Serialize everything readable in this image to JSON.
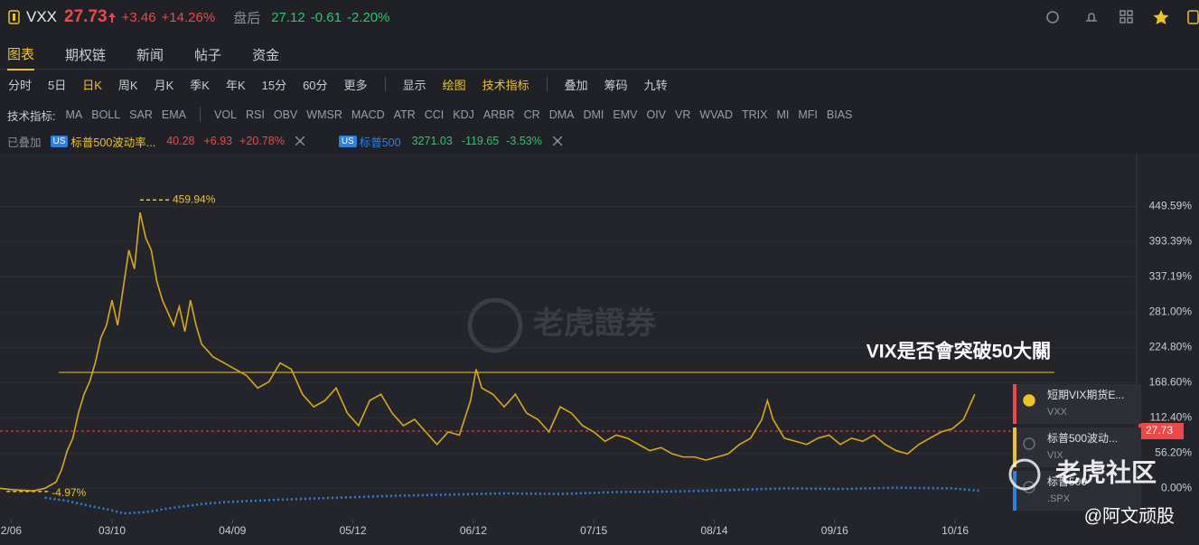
{
  "header": {
    "symbol": "VXX",
    "price": "27.73",
    "change": "+3.46",
    "change_pct": "+14.26%",
    "after_hours_label": "盘后",
    "after_price": "27.12",
    "after_change": "-0.61",
    "after_change_pct": "-2.20%"
  },
  "tabs": [
    "图表",
    "期权链",
    "新闻",
    "帖子",
    "资金"
  ],
  "periods": [
    "分时",
    "5日",
    "日K",
    "周K",
    "月K",
    "季K",
    "年K",
    "15分",
    "60分",
    "更多"
  ],
  "tools": [
    "显示",
    "绘图",
    "技术指标"
  ],
  "extra_tools": [
    "叠加",
    "筹码",
    "九转"
  ],
  "indicators_label": "技术指标:",
  "indicators": [
    "MA",
    "BOLL",
    "SAR",
    "EMA",
    "VOL",
    "RSI",
    "OBV",
    "WMSR",
    "MACD",
    "ATR",
    "CCI",
    "KDJ",
    "ARBR",
    "CR",
    "DMA",
    "DMI",
    "EMV",
    "OIV",
    "VR",
    "WVAD",
    "TRIX",
    "MI",
    "MFI",
    "BIAS"
  ],
  "overlay_label": "已叠加",
  "overlays": [
    {
      "market": "US",
      "name": "标普500波动率...",
      "price": "40.28",
      "change": "+6.93",
      "change_pct": "+20.78%"
    },
    {
      "market": "US",
      "name": "标普500",
      "price": "3271.03",
      "change": "-119.65",
      "change_pct": "-3.53%"
    }
  ],
  "legend_panel": [
    {
      "name": "短期VIX期货E...",
      "code": "VXX"
    },
    {
      "name": "标普500波动...",
      "code": "VIX"
    },
    {
      "name": "标普500",
      "code": ".SPX"
    }
  ],
  "watermarks": [
    "老虎證券",
    "老虎社区",
    "@阿文顽股"
  ],
  "chart_data": {
    "type": "line",
    "annotation": "VIX是否會突破50大關",
    "annotation_level": 185,
    "max_label": {
      "value": 459.94,
      "label": "459.94%"
    },
    "min_label": {
      "value": -4.97,
      "label": "-4.97%"
    },
    "current_price_label": "27.73",
    "xlim": [
      0,
      180
    ],
    "ylim": [
      -50,
      505
    ],
    "xticks": [
      {
        "value": 2,
        "label": "2/06"
      },
      {
        "value": 20,
        "label": "03/10"
      },
      {
        "value": 41.5,
        "label": "04/09"
      },
      {
        "value": 63,
        "label": "05/12"
      },
      {
        "value": 84.5,
        "label": "06/12"
      },
      {
        "value": 106,
        "label": "07/15"
      },
      {
        "value": 127.5,
        "label": "08/14"
      },
      {
        "value": 149,
        "label": "09/16"
      },
      {
        "value": 170.5,
        "label": "10/16"
      }
    ],
    "yticks": [
      {
        "value": 0,
        "label": "0.00%"
      },
      {
        "value": 56.2,
        "label": "56.20%"
      },
      {
        "value": 112.4,
        "label": "112.40%"
      },
      {
        "value": 168.6,
        "label": "168.60%"
      },
      {
        "value": 224.8,
        "label": "224.80%"
      },
      {
        "value": 281,
        "label": "281.00%"
      },
      {
        "value": 337.19,
        "label": "337.19%"
      },
      {
        "value": 393.39,
        "label": "393.39%"
      },
      {
        "value": 449.59,
        "label": "449.59%"
      }
    ],
    "series": [
      {
        "color": "#d9a90f",
        "style": "solid",
        "x": [
          0,
          2,
          4,
          6,
          8,
          10,
          11,
          12,
          13,
          14,
          15,
          16,
          17,
          18,
          19,
          20,
          21,
          22,
          23,
          24,
          25,
          26,
          27,
          28,
          29,
          30,
          31,
          32,
          33,
          34,
          35,
          36,
          37,
          38,
          40,
          42,
          44,
          46,
          48,
          50,
          52,
          54,
          56,
          58,
          60,
          62,
          64,
          66,
          68,
          70,
          72,
          74,
          76,
          78,
          80,
          82,
          84,
          85,
          86,
          88,
          90,
          92,
          94,
          96,
          98,
          100,
          102,
          104,
          106,
          108,
          110,
          112,
          114,
          116,
          118,
          120,
          122,
          124,
          126,
          128,
          130,
          132,
          134,
          136,
          137,
          138,
          140,
          142,
          144,
          146,
          148,
          150,
          152,
          154,
          156,
          158,
          160,
          162,
          164,
          166,
          168,
          170,
          172,
          174
        ],
        "values": [
          0,
          -2,
          -3,
          -4,
          0,
          10,
          30,
          60,
          80,
          120,
          150,
          170,
          200,
          240,
          260,
          300,
          260,
          320,
          380,
          350,
          440,
          400,
          380,
          330,
          300,
          280,
          260,
          290,
          250,
          300,
          260,
          230,
          220,
          210,
          200,
          190,
          180,
          160,
          170,
          200,
          190,
          150,
          130,
          140,
          160,
          120,
          100,
          140,
          150,
          120,
          100,
          110,
          90,
          70,
          90,
          85,
          140,
          190,
          160,
          150,
          130,
          150,
          120,
          110,
          90,
          130,
          120,
          100,
          90,
          75,
          85,
          80,
          70,
          60,
          65,
          55,
          50,
          50,
          45,
          50,
          55,
          70,
          80,
          110,
          140,
          110,
          80,
          75,
          70,
          80,
          85,
          70,
          80,
          75,
          85,
          70,
          60,
          55,
          70,
          80,
          90,
          95,
          110,
          150
        ]
      },
      {
        "color": "#2f7fe0",
        "style": "dotted",
        "x": [
          8,
          12,
          16,
          20,
          22,
          26,
          30,
          36,
          40,
          50,
          60,
          70,
          80,
          90,
          100,
          110,
          120,
          130,
          140,
          150,
          160,
          170,
          175
        ],
        "values": [
          -15,
          -20,
          -28,
          -35,
          -40,
          -38,
          -32,
          -25,
          -22,
          -18,
          -15,
          -12,
          -10,
          -8,
          -9,
          -6,
          -5,
          -3,
          0,
          -1,
          1,
          0,
          -4
        ]
      }
    ]
  }
}
